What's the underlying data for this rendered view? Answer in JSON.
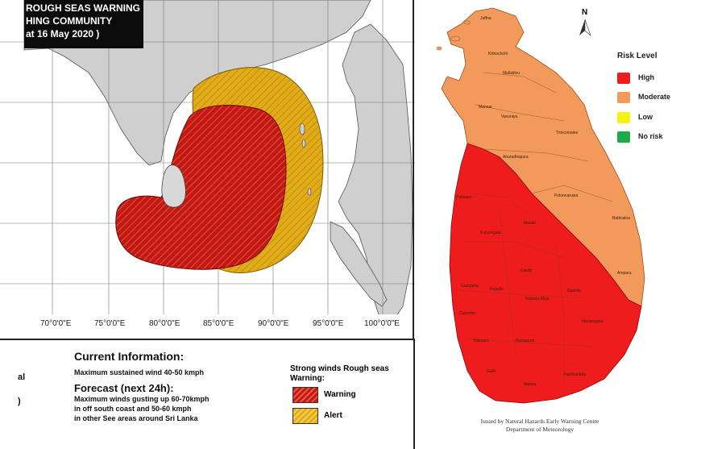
{
  "left_map": {
    "title_lines": [
      "ROUGH SEAS WARNING",
      "HING COMMUNITY",
      "at 16 May 2020 )"
    ],
    "longitude_labels": [
      "70°0'0\"E",
      "75°0'0\"E",
      "80°0'0\"E",
      "85°0'0\"E",
      "90°0'0\"E",
      "95°0'0\"E",
      "100°0'0\"E"
    ],
    "colors": {
      "warning": "#c41812",
      "alert": "#e2ac18",
      "land": "#cfcfcf",
      "sea": "#ffffff"
    }
  },
  "info_panel": {
    "current_title": "Current Information:",
    "current_text": "Maximum sustained wind 40-50 kmph",
    "forecast_title": "Forecast (next 24h):",
    "forecast_lines": [
      "Maximum winds gusting up 60-70kmph",
      "in off south coast and 50-60 kmph",
      "in other See areas around Sri Lanka"
    ],
    "edge_fragments": [
      "al",
      ")"
    ],
    "legend": {
      "title": "Strong winds Rough seas Warning:",
      "items": [
        {
          "label": "Warning",
          "color": "#c41812"
        },
        {
          "label": "Alert",
          "color": "#e2ac18"
        }
      ]
    }
  },
  "right_map": {
    "north_label": "N",
    "risk_legend": {
      "title": "Risk Level",
      "items": [
        {
          "label": "High",
          "color": "#ee1c1c"
        },
        {
          "label": "Moderate",
          "color": "#f29a5b"
        },
        {
          "label": "Low",
          "color": "#f6f20f"
        },
        {
          "label": "No risk",
          "color": "#1faa4a"
        }
      ]
    },
    "districts": [
      "Jaffna",
      "Kilinochchi",
      "Mullaitivu",
      "Mannar",
      "Vavuniya",
      "Trincomalee",
      "Anuradhapura",
      "Puttalam",
      "Polonnaruwa",
      "Batticaloa",
      "Kurunegala",
      "Matale",
      "Ampara",
      "Gampaha",
      "Kandy",
      "Kegalle",
      "Colombo",
      "Nuwara Eliya",
      "Badulla",
      "Monaragala",
      "Kalutara",
      "Ratnapura",
      "Galle",
      "Matara",
      "Hambantota"
    ],
    "footer_lines": [
      "Issued by Natural Hazards Early Warning Centre",
      "Department of Meteorology"
    ]
  }
}
